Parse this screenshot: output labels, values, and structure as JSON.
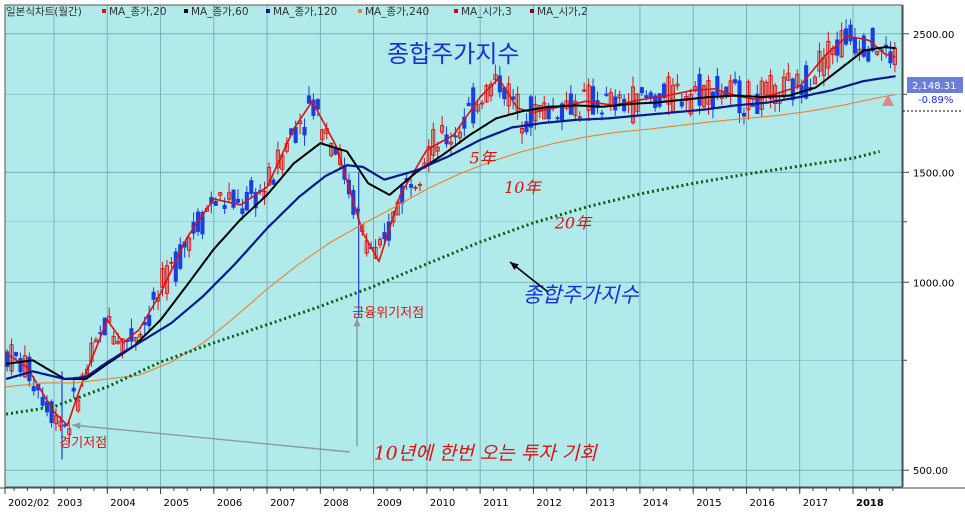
{
  "chart_data": {
    "type": "line",
    "title": "종합주가지수",
    "legend": {
      "placement": "top-left",
      "items": [
        {
          "label": "일본식차트(월간)",
          "color": "#c01010"
        },
        {
          "label": "MA_종가,20",
          "color": "#e01010"
        },
        {
          "label": "MA_종가,60",
          "color": "#000000"
        },
        {
          "label": "MA_종가,120",
          "color": "#0a1a8c"
        },
        {
          "label": "MA_종가,240",
          "color": "#f08030"
        },
        {
          "label": "MA_시가,3",
          "color": "#c01010"
        },
        {
          "label": "MA_시가,2",
          "color": "#8b0000"
        }
      ]
    },
    "y_scale": "log",
    "ylim": [
      470,
      2780
    ],
    "y_ticks": [
      {
        "value": 2500,
        "label": "2500.00"
      },
      {
        "value": 1500,
        "label": "1500.00"
      },
      {
        "value": 1000,
        "label": "1000.00"
      },
      {
        "value": 500,
        "label": "500.00"
      }
    ],
    "xlim": [
      2002.08,
      2018.92
    ],
    "x_ticks": [
      {
        "value": 2002.08,
        "label": "2002/02"
      },
      {
        "value": 2003,
        "label": "2003"
      },
      {
        "value": 2004,
        "label": "2004"
      },
      {
        "value": 2005,
        "label": "2005"
      },
      {
        "value": 2006,
        "label": "2006"
      },
      {
        "value": 2007,
        "label": "2007"
      },
      {
        "value": 2008,
        "label": "2008"
      },
      {
        "value": 2009,
        "label": "2009"
      },
      {
        "value": 2010,
        "label": "2010"
      },
      {
        "value": 2011,
        "label": "2011"
      },
      {
        "value": 2012,
        "label": "2012"
      },
      {
        "value": 2013,
        "label": "2013"
      },
      {
        "value": 2014,
        "label": "2014"
      },
      {
        "value": 2015,
        "label": "2015"
      },
      {
        "value": 2016,
        "label": "2016"
      },
      {
        "value": 2017,
        "label": "2017"
      },
      {
        "value": 2018,
        "label": "2018"
      }
    ],
    "grid": true,
    "last_price": {
      "value": 2148.31,
      "label": "2,148.31",
      "change": "-0.89%"
    },
    "series": [
      {
        "name": "MA_종가,20",
        "color": "#e01010",
        "x": [
          2002.1,
          2002.5,
          2003.0,
          2003.25,
          2003.5,
          2004.0,
          2004.3,
          2004.6,
          2005.0,
          2005.5,
          2006.0,
          2006.5,
          2007.0,
          2007.5,
          2007.85,
          2008.3,
          2008.8,
          2009.1,
          2009.5,
          2010.0,
          2010.5,
          2011.0,
          2011.35,
          2011.7,
          2012.0,
          2012.5,
          2013.0,
          2013.5,
          2014.0,
          2014.5,
          2015.0,
          2015.4,
          2015.8,
          2016.2,
          2016.6,
          2017.0,
          2017.5,
          2017.9,
          2018.3,
          2018.6,
          2018.83
        ],
        "values": [
          770,
          730,
          620,
          590,
          680,
          870,
          800,
          840,
          960,
          1180,
          1360,
          1330,
          1420,
          1760,
          1950,
          1650,
          1200,
          1080,
          1380,
          1630,
          1720,
          1980,
          2120,
          1900,
          1870,
          1910,
          1950,
          1920,
          1960,
          1990,
          2030,
          2040,
          1990,
          1960,
          2010,
          2060,
          2320,
          2480,
          2440,
          2320,
          2290
        ]
      },
      {
        "name": "MA_종가,60",
        "color": "#000000",
        "x": [
          2002.1,
          2002.6,
          2003.2,
          2003.6,
          2004.0,
          2004.5,
          2005.0,
          2005.5,
          2006.0,
          2006.5,
          2007.0,
          2007.5,
          2008.0,
          2008.5,
          2008.9,
          2009.3,
          2009.8,
          2010.3,
          2010.8,
          2011.3,
          2011.8,
          2012.3,
          2012.8,
          2013.3,
          2013.8,
          2014.3,
          2014.8,
          2015.3,
          2015.8,
          2016.3,
          2016.8,
          2017.3,
          2017.8,
          2018.2,
          2018.6,
          2018.83
        ],
        "values": [
          740,
          750,
          700,
          700,
          740,
          790,
          870,
          990,
          1130,
          1260,
          1380,
          1550,
          1670,
          1620,
          1440,
          1380,
          1500,
          1600,
          1720,
          1830,
          1880,
          1910,
          1920,
          1910,
          1930,
          1940,
          1960,
          1980,
          1990,
          1980,
          1990,
          2050,
          2210,
          2350,
          2380,
          2370
        ]
      },
      {
        "name": "MA_종가,120",
        "color": "#0a1a8c",
        "x": [
          2002.1,
          2002.6,
          2003.2,
          2003.6,
          2004.0,
          2004.6,
          2005.2,
          2005.8,
          2006.4,
          2007.0,
          2007.6,
          2008.1,
          2008.5,
          2008.8,
          2009.2,
          2009.8,
          2010.4,
          2011.0,
          2011.6,
          2012.2,
          2012.8,
          2013.4,
          2014.0,
          2014.6,
          2015.2,
          2015.8,
          2016.4,
          2017.0,
          2017.6,
          2018.2,
          2018.83
        ],
        "values": [
          700,
          720,
          700,
          705,
          745,
          800,
          860,
          950,
          1070,
          1220,
          1370,
          1480,
          1540,
          1530,
          1460,
          1510,
          1590,
          1690,
          1770,
          1800,
          1820,
          1830,
          1850,
          1870,
          1890,
          1920,
          1940,
          1980,
          2030,
          2100,
          2140
        ]
      },
      {
        "name": "MA_종가,240",
        "color": "#f08030",
        "x": [
          2002.1,
          2002.8,
          2003.4,
          2004.0,
          2004.6,
          2005.2,
          2005.8,
          2006.4,
          2007.0,
          2007.6,
          2008.2,
          2008.8,
          2009.4,
          2010.0,
          2010.6,
          2011.2,
          2011.8,
          2012.4,
          2013.0,
          2013.6,
          2014.2,
          2014.8,
          2015.4,
          2016.0,
          2016.6,
          2017.2,
          2017.8,
          2018.4,
          2018.83
        ],
        "values": [
          680,
          690,
          690,
          700,
          710,
          745,
          800,
          880,
          975,
          1070,
          1160,
          1240,
          1320,
          1410,
          1490,
          1560,
          1620,
          1670,
          1710,
          1740,
          1760,
          1785,
          1810,
          1830,
          1850,
          1880,
          1920,
          1970,
          2000
        ]
      },
      {
        "name": "20년",
        "color": "#0a5c0a",
        "x": [
          2002.1,
          2003.0,
          2004.0,
          2005.0,
          2006.0,
          2007.0,
          2008.0,
          2009.0,
          2010.0,
          2011.0,
          2012.0,
          2013.0,
          2014.0,
          2015.0,
          2016.0,
          2017.0,
          2018.0,
          2018.5
        ],
        "values": [
          615,
          632,
          680,
          745,
          800,
          855,
          915,
          985,
          1070,
          1160,
          1245,
          1320,
          1385,
          1440,
          1490,
          1535,
          1580,
          1620
        ]
      }
    ],
    "annotations": [
      {
        "text": "5年",
        "x": 2010.8,
        "y": 1550
      },
      {
        "text": "10年",
        "x": 2011.45,
        "y": 1390
      },
      {
        "text": "20年",
        "x": 2012.4,
        "y": 1220
      },
      {
        "text": "종합주가지수",
        "x": 2011.8,
        "y": 930
      },
      {
        "text": "금융위기저점",
        "x": 2008.6,
        "y": 880
      },
      {
        "text": "경기저점",
        "x": 2003.1,
        "y": 545
      },
      {
        "text": "10년에 한번 오는 투자 기회",
        "x": 2009.0,
        "y": 520
      }
    ]
  }
}
